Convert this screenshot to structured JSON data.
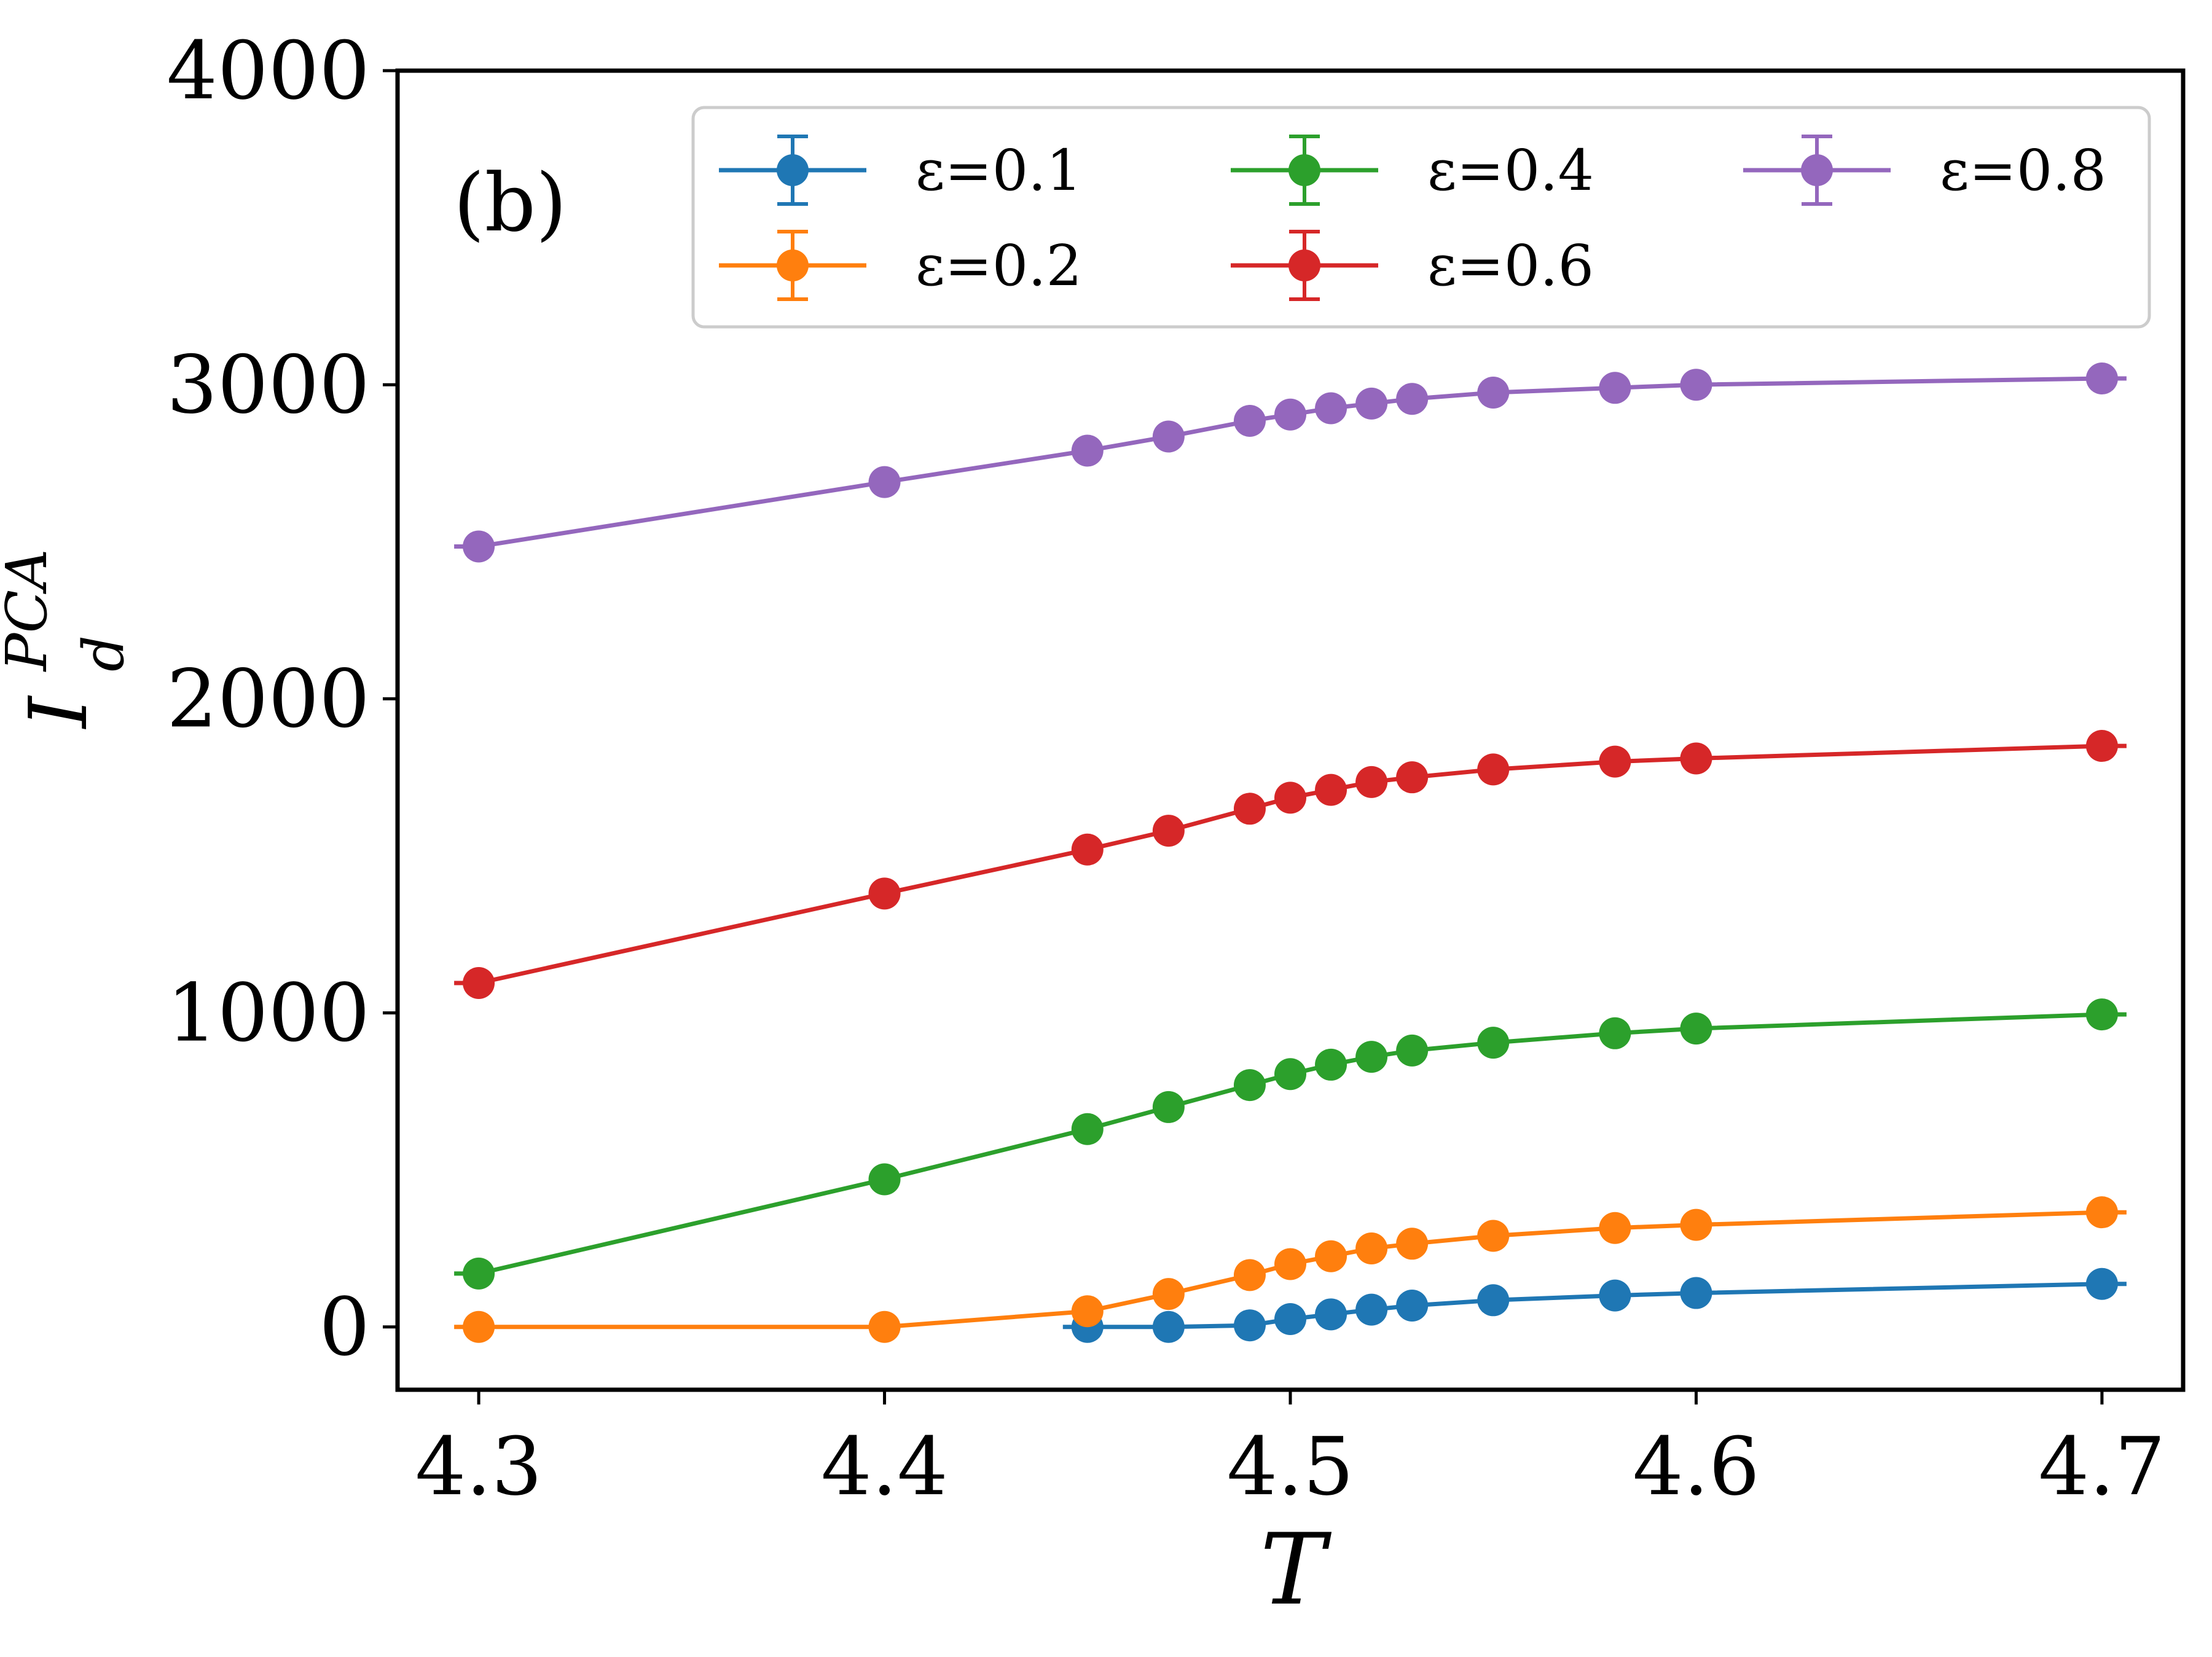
{
  "chart_data": {
    "type": "line",
    "panel_label": "(b)",
    "xlabel": "T",
    "ylabel": {
      "base": "I",
      "sup": "PCA",
      "sub": "d"
    },
    "xlim": [
      4.28,
      4.72
    ],
    "ylim": [
      -200,
      4000
    ],
    "xticks": [
      4.3,
      4.4,
      4.5,
      4.6,
      4.7
    ],
    "xtick_labels": [
      "4.3",
      "4.4",
      "4.5",
      "4.6",
      "4.7"
    ],
    "yticks": [
      0,
      1000,
      2000,
      3000,
      4000
    ],
    "ytick_labels": [
      "0",
      "1000",
      "2000",
      "3000",
      "4000"
    ],
    "grid": false,
    "legend": {
      "placement": "top-right",
      "columns": 3,
      "symbol": "ε"
    },
    "series": [
      {
        "name": "ε=0.1",
        "eps": "0.1",
        "color": "#1f77b4",
        "x": [
          4.45,
          4.47,
          4.49,
          4.5,
          4.51,
          4.52,
          4.53,
          4.55,
          4.58,
          4.6,
          4.7
        ],
        "y": [
          0,
          0,
          5,
          25,
          40,
          55,
          68,
          85,
          100,
          108,
          137
        ]
      },
      {
        "name": "ε=0.2",
        "eps": "0.2",
        "color": "#ff7f0e",
        "x": [
          4.3,
          4.4,
          4.45,
          4.47,
          4.49,
          4.5,
          4.51,
          4.52,
          4.53,
          4.55,
          4.58,
          4.6,
          4.7
        ],
        "y": [
          0,
          0,
          50,
          105,
          165,
          200,
          225,
          250,
          265,
          290,
          315,
          325,
          365
        ]
      },
      {
        "name": "ε=0.4",
        "eps": "0.4",
        "color": "#2ca02c",
        "x": [
          4.3,
          4.4,
          4.45,
          4.47,
          4.49,
          4.5,
          4.51,
          4.52,
          4.53,
          4.55,
          4.58,
          4.6,
          4.7
        ],
        "y": [
          170,
          470,
          630,
          700,
          770,
          805,
          835,
          860,
          880,
          905,
          935,
          950,
          995
        ]
      },
      {
        "name": "ε=0.6",
        "eps": "0.6",
        "color": "#d62728",
        "x": [
          4.3,
          4.4,
          4.45,
          4.47,
          4.49,
          4.5,
          4.51,
          4.52,
          4.53,
          4.55,
          4.58,
          4.6,
          4.7
        ],
        "y": [
          1095,
          1380,
          1520,
          1580,
          1650,
          1685,
          1710,
          1735,
          1750,
          1775,
          1800,
          1810,
          1850
        ]
      },
      {
        "name": "ε=0.8",
        "eps": "0.8",
        "color": "#9467bd",
        "x": [
          4.3,
          4.4,
          4.45,
          4.47,
          4.49,
          4.5,
          4.51,
          4.52,
          4.53,
          4.55,
          4.58,
          4.6,
          4.7
        ],
        "y": [
          2485,
          2690,
          2790,
          2835,
          2885,
          2905,
          2925,
          2940,
          2955,
          2975,
          2990,
          3000,
          3020
        ]
      }
    ]
  }
}
